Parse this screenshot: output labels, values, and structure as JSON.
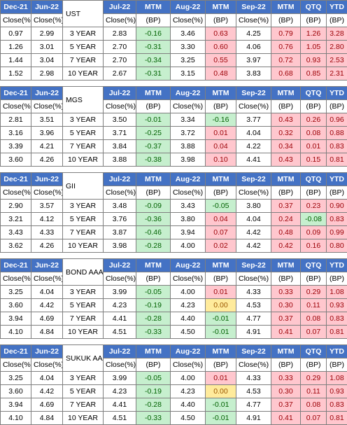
{
  "headers": {
    "dec21": "Dec-21",
    "jun22": "Jun-22",
    "jul22": "Jul-22",
    "mtm": "MTM",
    "aug22": "Aug-22",
    "sep22": "Sep-22",
    "qtq": "QTQ",
    "ytd": "YTD",
    "close": "Close(%)",
    "bp": "(BP)"
  },
  "colors": {
    "header_bg": "#4472c4",
    "header_text": "#ffffff",
    "positive_bg": "#ffc7ce",
    "negative_bg": "#c6efce",
    "zero_bg": "#ffeb9c"
  },
  "tables": [
    {
      "name": "UST",
      "rows": [
        {
          "dec21": "0.97",
          "jun22": "2.99",
          "tenor": "3 YEAR",
          "jul22": "2.83",
          "mtm1": "-0.16",
          "aug22": "3.46",
          "mtm2": "0.63",
          "sep22": "4.25",
          "mtm3": "0.79",
          "qtq": "1.26",
          "ytd": "3.28"
        },
        {
          "dec21": "1.26",
          "jun22": "3.01",
          "tenor": "5 YEAR",
          "jul22": "2.70",
          "mtm1": "-0.31",
          "aug22": "3.30",
          "mtm2": "0.60",
          "sep22": "4.06",
          "mtm3": "0.76",
          "qtq": "1.05",
          "ytd": "2.80"
        },
        {
          "dec21": "1.44",
          "jun22": "3.04",
          "tenor": "7 YEAR",
          "jul22": "2.70",
          "mtm1": "-0.34",
          "aug22": "3.25",
          "mtm2": "0.55",
          "sep22": "3.97",
          "mtm3": "0.72",
          "qtq": "0.93",
          "ytd": "2.53"
        },
        {
          "dec21": "1.52",
          "jun22": "2.98",
          "tenor": "10 YEAR",
          "jul22": "2.67",
          "mtm1": "-0.31",
          "aug22": "3.15",
          "mtm2": "0.48",
          "sep22": "3.83",
          "mtm3": "0.68",
          "qtq": "0.85",
          "ytd": "2.31"
        }
      ]
    },
    {
      "name": "MGS",
      "rows": [
        {
          "dec21": "2.81",
          "jun22": "3.51",
          "tenor": "3 YEAR",
          "jul22": "3.50",
          "mtm1": "-0.01",
          "aug22": "3.34",
          "mtm2": "-0.16",
          "sep22": "3.77",
          "mtm3": "0.43",
          "qtq": "0.26",
          "ytd": "0.96"
        },
        {
          "dec21": "3.16",
          "jun22": "3.96",
          "tenor": "5 YEAR",
          "jul22": "3.71",
          "mtm1": "-0.25",
          "aug22": "3.72",
          "mtm2": "0.01",
          "sep22": "4.04",
          "mtm3": "0.32",
          "qtq": "0.08",
          "ytd": "0.88"
        },
        {
          "dec21": "3.39",
          "jun22": "4.21",
          "tenor": "7 YEAR",
          "jul22": "3.84",
          "mtm1": "-0.37",
          "aug22": "3.88",
          "mtm2": "0.04",
          "sep22": "4.22",
          "mtm3": "0.34",
          "qtq": "0.01",
          "ytd": "0.83"
        },
        {
          "dec21": "3.60",
          "jun22": "4.26",
          "tenor": "10 YEAR",
          "jul22": "3.88",
          "mtm1": "-0.38",
          "aug22": "3.98",
          "mtm2": "0.10",
          "sep22": "4.41",
          "mtm3": "0.43",
          "qtq": "0.15",
          "ytd": "0.81"
        }
      ]
    },
    {
      "name": "GII",
      "rows": [
        {
          "dec21": "2.90",
          "jun22": "3.57",
          "tenor": "3 YEAR",
          "jul22": "3.48",
          "mtm1": "-0.09",
          "aug22": "3.43",
          "mtm2": "-0.05",
          "sep22": "3.80",
          "mtm3": "0.37",
          "qtq": "0.23",
          "ytd": "0.90"
        },
        {
          "dec21": "3.21",
          "jun22": "4.12",
          "tenor": "5 YEAR",
          "jul22": "3.76",
          "mtm1": "-0.36",
          "aug22": "3.80",
          "mtm2": "0.04",
          "sep22": "4.04",
          "mtm3": "0.24",
          "qtq": "-0.08",
          "ytd": "0.83"
        },
        {
          "dec21": "3.43",
          "jun22": "4.33",
          "tenor": "7 YEAR",
          "jul22": "3.87",
          "mtm1": "-0.46",
          "aug22": "3.94",
          "mtm2": "0.07",
          "sep22": "4.42",
          "mtm3": "0.48",
          "qtq": "0.09",
          "ytd": "0.99"
        },
        {
          "dec21": "3.62",
          "jun22": "4.26",
          "tenor": "10 YEAR",
          "jul22": "3.98",
          "mtm1": "-0.28",
          "aug22": "4.00",
          "mtm2": "0.02",
          "sep22": "4.42",
          "mtm3": "0.42",
          "qtq": "0.16",
          "ytd": "0.80"
        }
      ]
    },
    {
      "name": "BOND AAA",
      "rows": [
        {
          "dec21": "3.25",
          "jun22": "4.04",
          "tenor": "3 YEAR",
          "jul22": "3.99",
          "mtm1": "-0.05",
          "aug22": "4.00",
          "mtm2": "0.01",
          "sep22": "4.33",
          "mtm3": "0.33",
          "qtq": "0.29",
          "ytd": "1.08"
        },
        {
          "dec21": "3.60",
          "jun22": "4.42",
          "tenor": "5 YEAR",
          "jul22": "4.23",
          "mtm1": "-0.19",
          "aug22": "4.23",
          "mtm2": "0.00",
          "sep22": "4.53",
          "mtm3": "0.30",
          "qtq": "0.11",
          "ytd": "0.93"
        },
        {
          "dec21": "3.94",
          "jun22": "4.69",
          "tenor": "7 YEAR",
          "jul22": "4.41",
          "mtm1": "-0.28",
          "aug22": "4.40",
          "mtm2": "-0.01",
          "sep22": "4.77",
          "mtm3": "0.37",
          "qtq": "0.08",
          "ytd": "0.83"
        },
        {
          "dec21": "4.10",
          "jun22": "4.84",
          "tenor": "10 YEAR",
          "jul22": "4.51",
          "mtm1": "-0.33",
          "aug22": "4.50",
          "mtm2": "-0.01",
          "sep22": "4.91",
          "mtm3": "0.41",
          "qtq": "0.07",
          "ytd": "0.81"
        }
      ]
    },
    {
      "name": "SUKUK AAA",
      "rows": [
        {
          "dec21": "3.25",
          "jun22": "4.04",
          "tenor": "3 YEAR",
          "jul22": "3.99",
          "mtm1": "-0.05",
          "aug22": "4.00",
          "mtm2": "0.01",
          "sep22": "4.33",
          "mtm3": "0.33",
          "qtq": "0.29",
          "ytd": "1.08"
        },
        {
          "dec21": "3.60",
          "jun22": "4.42",
          "tenor": "5 YEAR",
          "jul22": "4.23",
          "mtm1": "-0.19",
          "aug22": "4.23",
          "mtm2": "0.00",
          "sep22": "4.53",
          "mtm3": "0.30",
          "qtq": "0.11",
          "ytd": "0.93"
        },
        {
          "dec21": "3.94",
          "jun22": "4.69",
          "tenor": "7 YEAR",
          "jul22": "4.41",
          "mtm1": "-0.28",
          "aug22": "4.40",
          "mtm2": "-0.01",
          "sep22": "4.77",
          "mtm3": "0.37",
          "qtq": "0.08",
          "ytd": "0.83"
        },
        {
          "dec21": "4.10",
          "jun22": "4.84",
          "tenor": "10 YEAR",
          "jul22": "4.51",
          "mtm1": "-0.33",
          "aug22": "4.50",
          "mtm2": "-0.01",
          "sep22": "4.91",
          "mtm3": "0.41",
          "qtq": "0.07",
          "ytd": "0.81"
        }
      ]
    }
  ]
}
